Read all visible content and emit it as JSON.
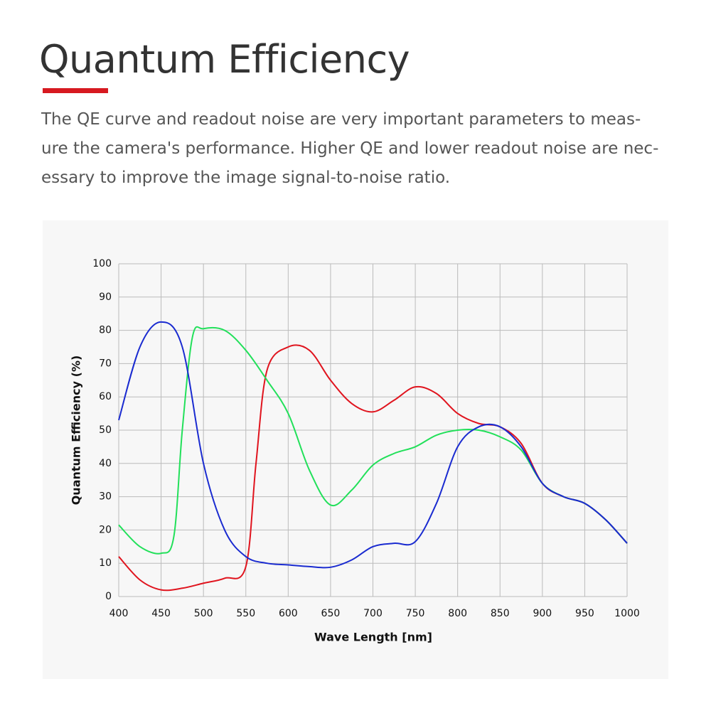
{
  "heading": "Quantum Efficiency",
  "description": [
    "The QE curve and readout noise are very important parameters to meas-",
    "ure the camera's performance. Higher QE and lower readout noise are nec-",
    "essary to improve the image signal-to-noise ratio."
  ],
  "chart_data": {
    "type": "line",
    "x_label": "Wave Length [nm]",
    "y_label": "Quantum Efficiency (%)",
    "xlim": [
      400,
      1000
    ],
    "ylim": [
      0,
      100
    ],
    "xticks": [
      400,
      450,
      500,
      550,
      600,
      650,
      700,
      750,
      800,
      850,
      900,
      950,
      1000
    ],
    "yticks": [
      0,
      10,
      20,
      30,
      40,
      50,
      60,
      70,
      80,
      90,
      100
    ],
    "grid": true,
    "series": [
      {
        "color": "#e0141e",
        "x": [
          400,
          425,
          450,
          475,
          500,
          525,
          550,
          562,
          575,
          600,
          625,
          650,
          675,
          700,
          725,
          750,
          775,
          800,
          825,
          850,
          875,
          900,
          925,
          950,
          975,
          1000
        ],
        "values": [
          12,
          5,
          2,
          2.5,
          4,
          5.5,
          9,
          40,
          68,
          75,
          74,
          65,
          58,
          55.5,
          59,
          63,
          61,
          55,
          52,
          51,
          46,
          34,
          30,
          28,
          23,
          16
        ]
      },
      {
        "color": "#22e05a",
        "x": [
          400,
          425,
          450,
          465,
          475,
          487,
          500,
          525,
          550,
          575,
          600,
          625,
          650,
          675,
          700,
          725,
          750,
          775,
          800,
          825,
          850,
          875,
          900,
          925,
          950,
          975,
          1000
        ],
        "values": [
          21.5,
          15,
          13,
          18,
          50,
          78,
          80.5,
          80,
          74,
          65,
          55,
          38,
          27.5,
          32,
          39.5,
          43,
          45,
          48.5,
          50,
          50,
          48,
          44,
          34,
          30,
          28,
          23,
          16
        ]
      },
      {
        "color": "#1a2bd0",
        "x": [
          400,
          425,
          450,
          475,
          500,
          525,
          550,
          575,
          600,
          625,
          650,
          675,
          700,
          725,
          750,
          775,
          800,
          825,
          850,
          875,
          900,
          925,
          950,
          975,
          1000
        ],
        "values": [
          53,
          75,
          82.5,
          75,
          40,
          20,
          12,
          10,
          9.5,
          9,
          8.8,
          11,
          15,
          16,
          16.5,
          28,
          45,
          51,
          51,
          45,
          34,
          30,
          28,
          23,
          16
        ]
      }
    ]
  }
}
